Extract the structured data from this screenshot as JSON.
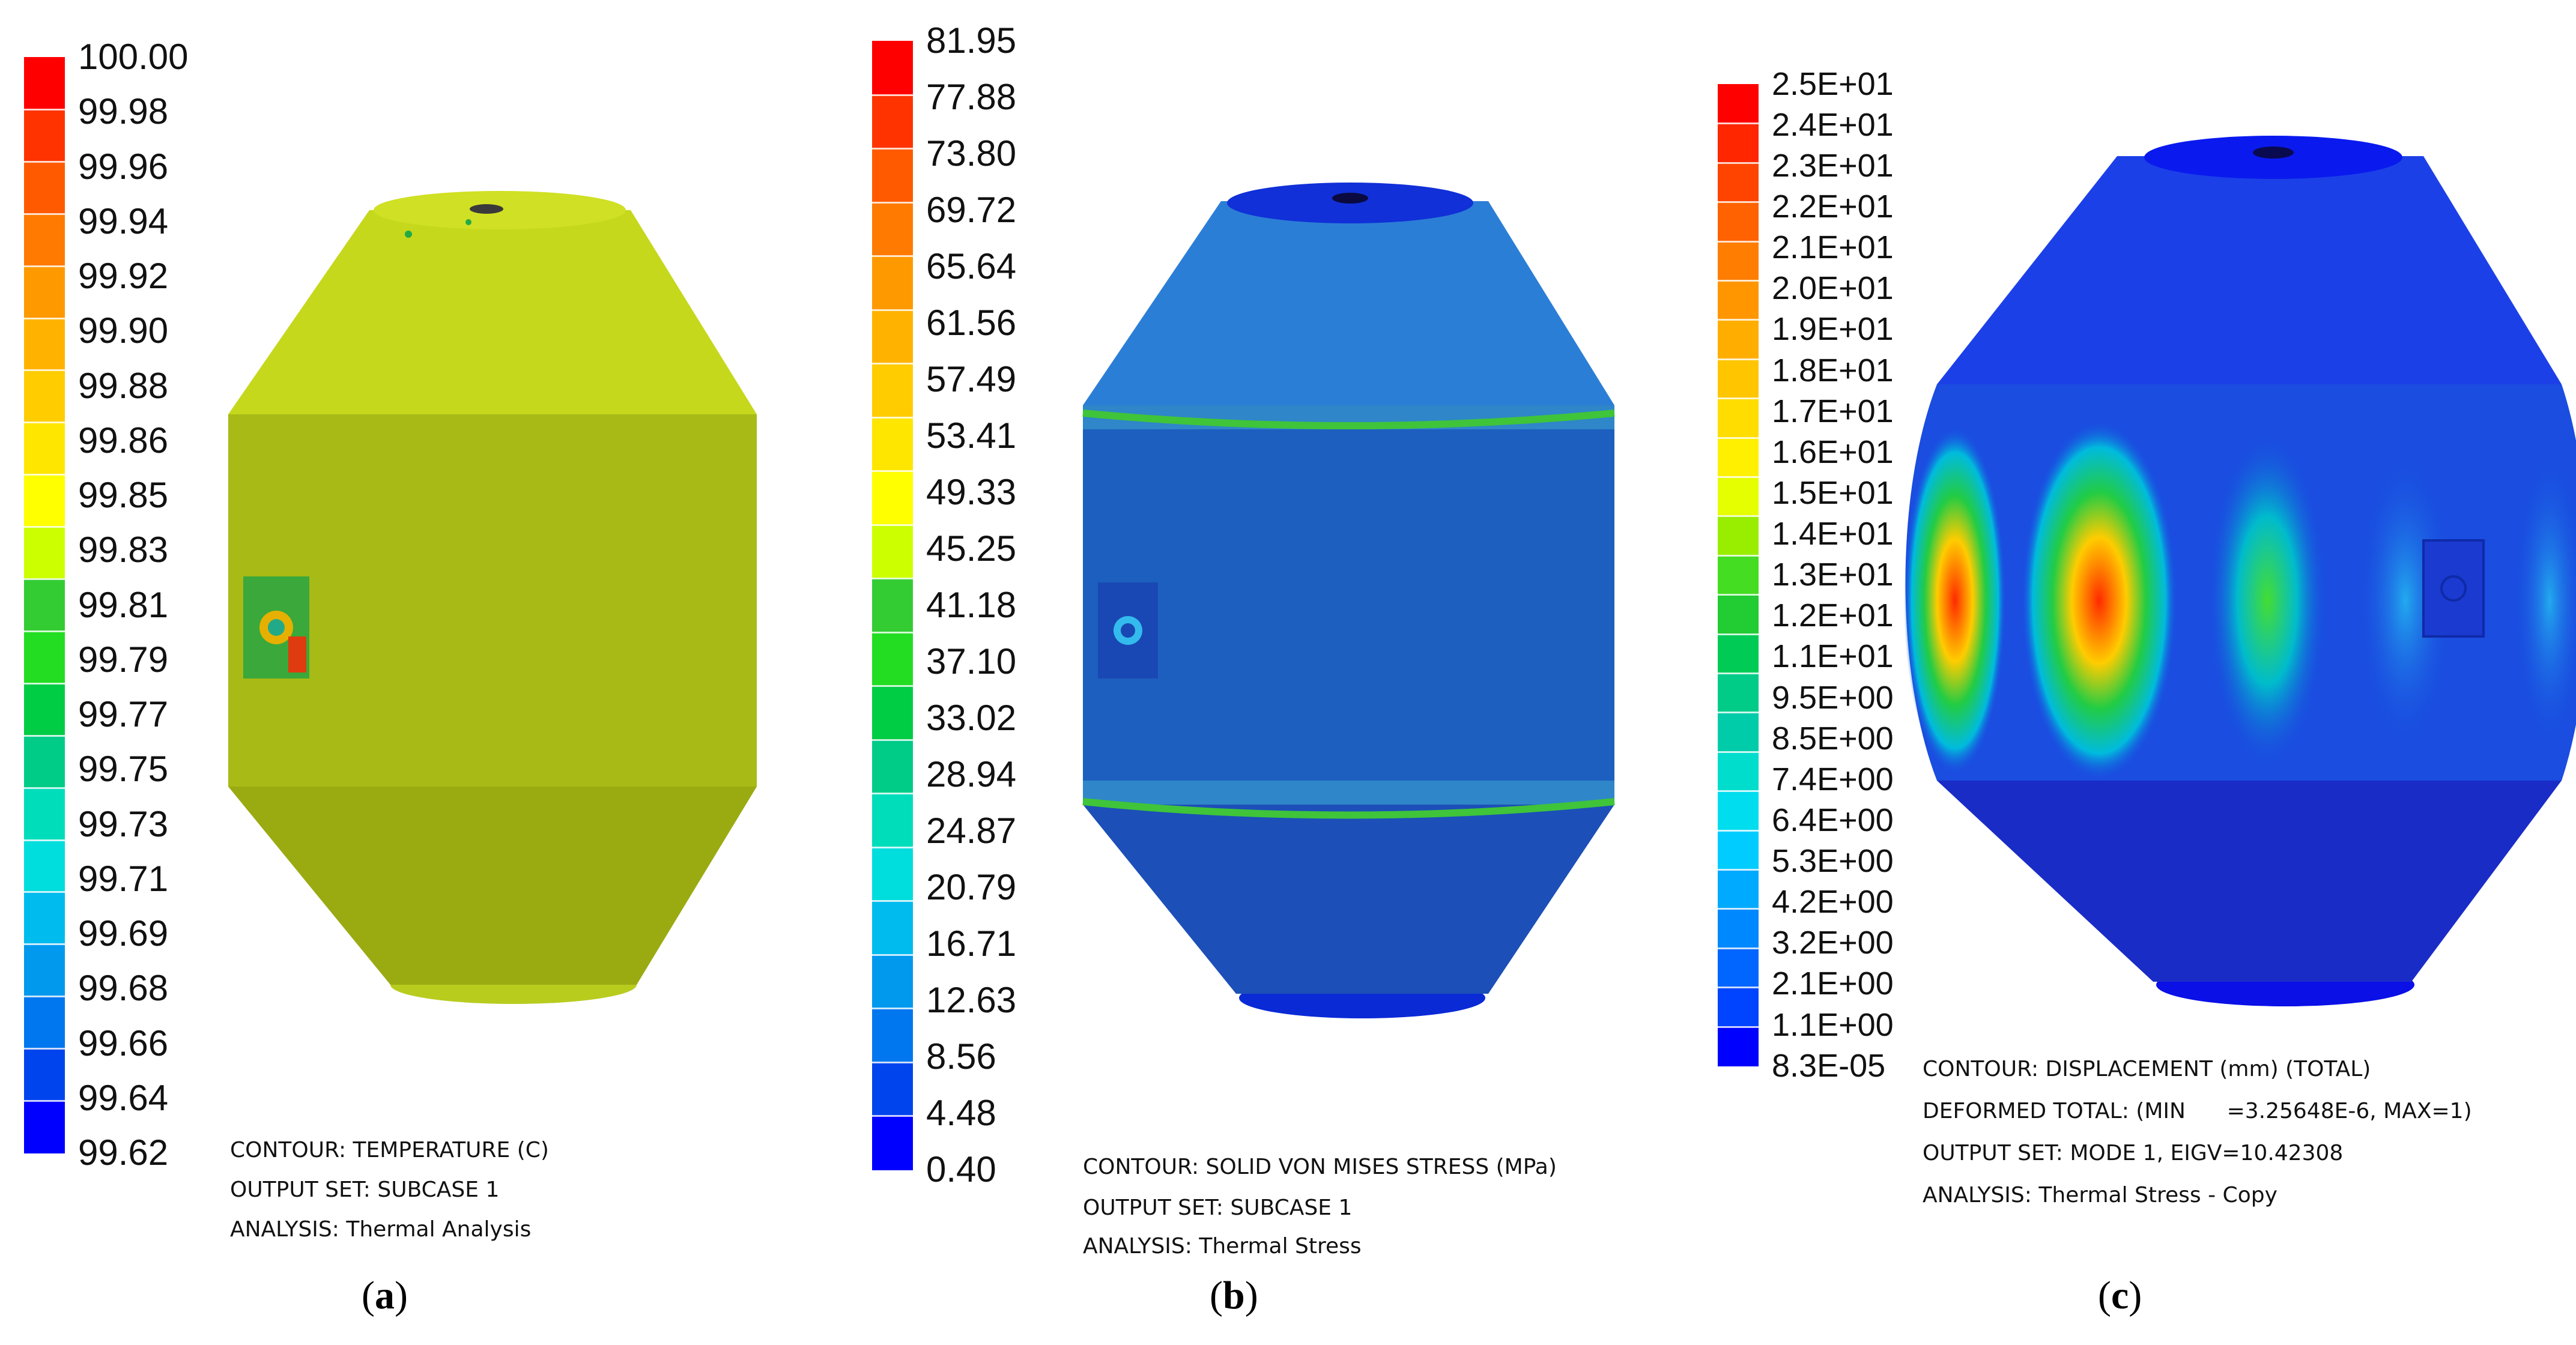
{
  "panels": [
    {
      "id": "a",
      "caption_letter": "a",
      "legend": {
        "labels": [
          "100.00",
          "99.98",
          "99.96",
          "99.94",
          "99.92",
          "99.90",
          "99.88",
          "99.86",
          "99.85",
          "99.83",
          "99.81",
          "99.79",
          "99.77",
          "99.75",
          "99.73",
          "99.71",
          "99.69",
          "99.68",
          "99.66",
          "99.64",
          "99.62"
        ],
        "colors": [
          "#ff0000",
          "#ff3300",
          "#ff5a00",
          "#ff7a00",
          "#ff9900",
          "#ffb300",
          "#ffcc00",
          "#ffe600",
          "#ffff00",
          "#ccff00",
          "#33cc33",
          "#22dd22",
          "#00cc44",
          "#00cc88",
          "#00ddbb",
          "#00dddd",
          "#00bbee",
          "#0099ee",
          "#0077ee",
          "#0044ee",
          "#0000ff"
        ]
      },
      "info": [
        "CONTOUR: TEMPERATURE (C)",
        "OUTPUT SET: SUBCASE 1",
        "ANALYSIS: Thermal Analysis"
      ],
      "body_color": "#c5d81c"
    },
    {
      "id": "b",
      "caption_letter": "b",
      "legend": {
        "labels": [
          "81.95",
          "77.88",
          "73.80",
          "69.72",
          "65.64",
          "61.56",
          "57.49",
          "53.41",
          "49.33",
          "45.25",
          "41.18",
          "37.10",
          "33.02",
          "28.94",
          "24.87",
          "20.79",
          "16.71",
          "12.63",
          "8.56",
          "4.48",
          "0.40"
        ],
        "colors": [
          "#ff0000",
          "#ff3300",
          "#ff5a00",
          "#ff7a00",
          "#ff9900",
          "#ffb300",
          "#ffcc00",
          "#ffe600",
          "#ffff00",
          "#ccff00",
          "#33cc33",
          "#22dd22",
          "#00cc44",
          "#00cc88",
          "#00ddbb",
          "#00dddd",
          "#00bbee",
          "#0099ee",
          "#0077ee",
          "#0044ee",
          "#0000ff"
        ]
      },
      "info": [
        "CONTOUR: SOLID VON MISES STRESS (MPa)",
        "OUTPUT SET: SUBCASE 1",
        "ANALYSIS: Thermal Stress"
      ],
      "body_color": "#1f6fd6"
    },
    {
      "id": "c",
      "caption_letter": "c",
      "legend": {
        "labels": [
          "2.5E+01",
          "2.4E+01",
          "2.3E+01",
          "2.2E+01",
          "2.1E+01",
          "2.0E+01",
          "1.9E+01",
          "1.8E+01",
          "1.7E+01",
          "1.6E+01",
          "1.5E+01",
          "1.4E+01",
          "1.3E+01",
          "1.2E+01",
          "1.1E+01",
          "9.5E+00",
          "8.5E+00",
          "7.4E+00",
          "6.4E+00",
          "5.3E+00",
          "4.2E+00",
          "3.2E+00",
          "2.1E+00",
          "1.1E+00",
          "8.3E-05"
        ],
        "colors": [
          "#ff0000",
          "#ff2600",
          "#ff4400",
          "#ff6200",
          "#ff7d00",
          "#ff9600",
          "#ffae00",
          "#ffc600",
          "#ffdd00",
          "#fff000",
          "#e6ff00",
          "#99ee00",
          "#44dd22",
          "#22cc33",
          "#00cc55",
          "#00cc88",
          "#00ccaa",
          "#00ddcc",
          "#00ddee",
          "#00ccff",
          "#00aaff",
          "#0088ff",
          "#0066ff",
          "#0044ff",
          "#0000ff"
        ]
      },
      "info": [
        "CONTOUR: DISPLACEMENT (mm) (TOTAL)",
        "DEFORMED TOTAL: (MIN      =3.25648E-6, MAX=1)",
        "OUTPUT SET: MODE 1, EIGV=10.42308",
        "ANALYSIS: Thermal Stress - Copy"
      ],
      "body_color": "#1533e8"
    }
  ]
}
